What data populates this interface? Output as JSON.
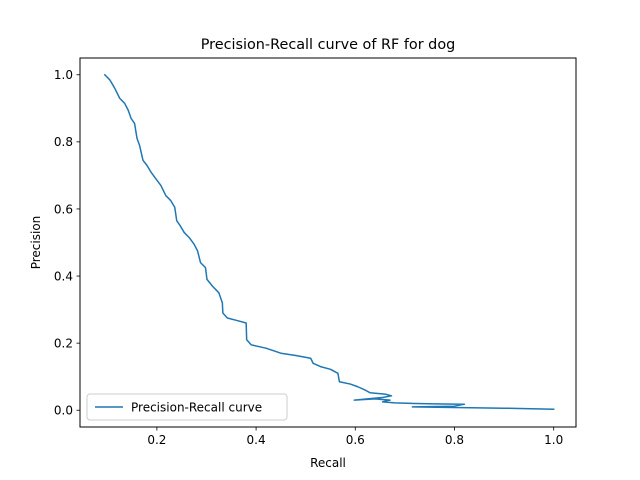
{
  "chart_data": {
    "type": "line",
    "title": "Precision-Recall curve of RF for dog",
    "xlabel": "Recall",
    "ylabel": "Precision",
    "xlim": [
      0.045,
      1.045
    ],
    "ylim": [
      -0.05,
      1.05
    ],
    "xticks": [
      0.2,
      0.4,
      0.6,
      0.8,
      1.0
    ],
    "yticks": [
      0.0,
      0.2,
      0.4,
      0.6,
      0.8,
      1.0
    ],
    "xtick_labels": [
      "0.2",
      "0.4",
      "0.6",
      "0.8",
      "1.0"
    ],
    "ytick_labels": [
      "0.0",
      "0.2",
      "0.4",
      "0.6",
      "0.8",
      "1.0"
    ],
    "grid": false,
    "legend_position": "lower-left",
    "series": [
      {
        "name": "Precision-Recall curve",
        "color": "#1f77b4",
        "points": [
          [
            0.095,
            1.0
          ],
          [
            0.105,
            0.985
          ],
          [
            0.115,
            0.96
          ],
          [
            0.125,
            0.93
          ],
          [
            0.135,
            0.915
          ],
          [
            0.142,
            0.895
          ],
          [
            0.148,
            0.87
          ],
          [
            0.155,
            0.855
          ],
          [
            0.16,
            0.81
          ],
          [
            0.165,
            0.79
          ],
          [
            0.172,
            0.745
          ],
          [
            0.18,
            0.73
          ],
          [
            0.188,
            0.71
          ],
          [
            0.198,
            0.69
          ],
          [
            0.208,
            0.67
          ],
          [
            0.218,
            0.64
          ],
          [
            0.228,
            0.625
          ],
          [
            0.236,
            0.605
          ],
          [
            0.24,
            0.565
          ],
          [
            0.247,
            0.55
          ],
          [
            0.255,
            0.53
          ],
          [
            0.265,
            0.515
          ],
          [
            0.275,
            0.495
          ],
          [
            0.282,
            0.475
          ],
          [
            0.288,
            0.44
          ],
          [
            0.298,
            0.425
          ],
          [
            0.301,
            0.39
          ],
          [
            0.312,
            0.37
          ],
          [
            0.325,
            0.35
          ],
          [
            0.332,
            0.32
          ],
          [
            0.333,
            0.29
          ],
          [
            0.342,
            0.275
          ],
          [
            0.36,
            0.268
          ],
          [
            0.38,
            0.26
          ],
          [
            0.381,
            0.21
          ],
          [
            0.39,
            0.195
          ],
          [
            0.42,
            0.185
          ],
          [
            0.45,
            0.17
          ],
          [
            0.48,
            0.163
          ],
          [
            0.51,
            0.155
          ],
          [
            0.515,
            0.14
          ],
          [
            0.53,
            0.13
          ],
          [
            0.55,
            0.122
          ],
          [
            0.565,
            0.11
          ],
          [
            0.568,
            0.085
          ],
          [
            0.59,
            0.078
          ],
          [
            0.605,
            0.07
          ],
          [
            0.62,
            0.06
          ],
          [
            0.63,
            0.052
          ],
          [
            0.66,
            0.048
          ],
          [
            0.673,
            0.043
          ],
          [
            0.655,
            0.038
          ],
          [
            0.598,
            0.03
          ],
          [
            0.64,
            0.034
          ],
          [
            0.67,
            0.03
          ],
          [
            0.655,
            0.025
          ],
          [
            0.68,
            0.022
          ],
          [
            0.72,
            0.02
          ],
          [
            0.76,
            0.019
          ],
          [
            0.82,
            0.018
          ],
          [
            0.8,
            0.012
          ],
          [
            0.715,
            0.01
          ],
          [
            0.8,
            0.008
          ],
          [
            0.9,
            0.006
          ],
          [
            1.0,
            0.003
          ]
        ]
      }
    ]
  }
}
